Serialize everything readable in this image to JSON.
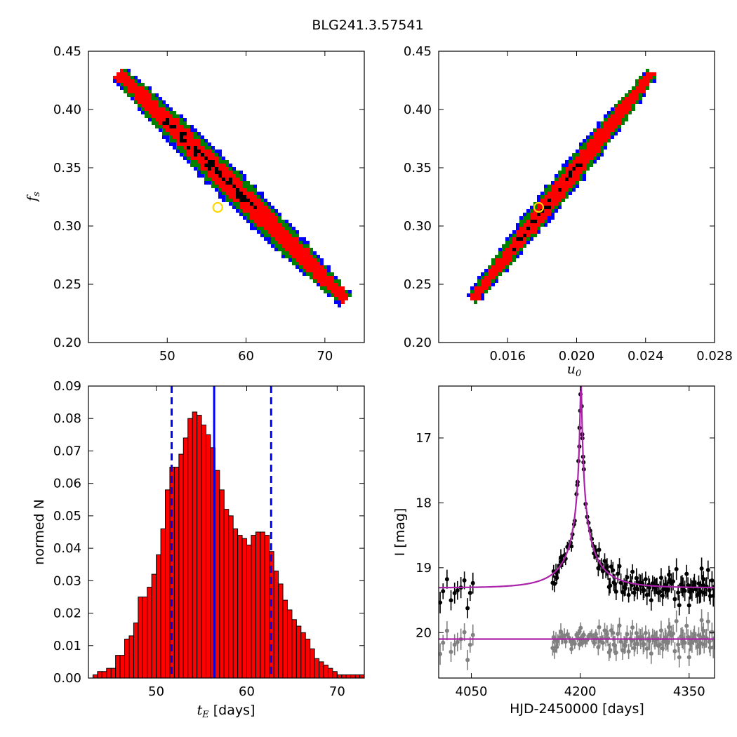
{
  "figure": {
    "title": "BLG241.3.57541"
  },
  "chart_data": [
    {
      "id": "fs_vs_tE",
      "type": "heatmap",
      "description_levels": [
        "black",
        "red",
        "green",
        "blue"
      ],
      "xlabel": "",
      "ylabel": "f_s",
      "xlim": [
        40,
        75
      ],
      "ylim": [
        0.2,
        0.45
      ],
      "xticks": [
        "50",
        "60",
        "70"
      ],
      "yticks": [
        "0.20",
        "0.25",
        "0.30",
        "0.35",
        "0.40",
        "0.45"
      ],
      "ridge": {
        "x": [
          44,
          72.5
        ],
        "y": [
          0.43,
          0.238
        ]
      },
      "best_fit": {
        "x": 56.4,
        "y": 0.316
      },
      "colors": {
        "inner": "#000000",
        "c1": "#ff0000",
        "c2": "#008000",
        "c3": "#0000ff",
        "marker": "#ffd700"
      }
    },
    {
      "id": "fs_vs_u0",
      "type": "heatmap",
      "xlabel": "u_0",
      "ylabel": "",
      "xlim": [
        0.012,
        0.028
      ],
      "ylim": [
        0.2,
        0.45
      ],
      "xticks": [
        "0.016",
        "0.020",
        "0.024",
        "0.028"
      ],
      "yticks": [
        "0.20",
        "0.25",
        "0.30",
        "0.35",
        "0.40",
        "0.45"
      ],
      "ridge": {
        "x": [
          0.014,
          0.0243
        ],
        "y": [
          0.238,
          0.43
        ]
      },
      "best_fit": {
        "x": 0.0178,
        "y": 0.316
      }
    },
    {
      "id": "tE_histogram",
      "type": "bar",
      "xlabel_var": "t_E",
      "xlabel_unit": " [days]",
      "ylabel": "normed N",
      "xlim": [
        42.5,
        73
      ],
      "ylim": [
        0,
        0.09
      ],
      "xticks": [
        "50",
        "60",
        "70"
      ],
      "yticks": [
        "0.00",
        "0.01",
        "0.02",
        "0.03",
        "0.04",
        "0.05",
        "0.06",
        "0.07",
        "0.08",
        "0.09"
      ],
      "bin_start": 43.0,
      "bin_width": 0.5,
      "values": [
        0.001,
        0.002,
        0.002,
        0.003,
        0.003,
        0.007,
        0.007,
        0.012,
        0.013,
        0.017,
        0.025,
        0.025,
        0.028,
        0.032,
        0.038,
        0.046,
        0.058,
        0.065,
        0.065,
        0.069,
        0.074,
        0.08,
        0.082,
        0.081,
        0.078,
        0.075,
        0.071,
        0.064,
        0.058,
        0.052,
        0.05,
        0.046,
        0.044,
        0.043,
        0.041,
        0.044,
        0.045,
        0.045,
        0.044,
        0.039,
        0.033,
        0.029,
        0.024,
        0.021,
        0.018,
        0.016,
        0.014,
        0.012,
        0.009,
        0.006,
        0.005,
        0.004,
        0.003,
        0.002,
        0.001,
        0.001,
        0.001,
        0.001,
        0.001,
        0.001
      ],
      "median": 56.4,
      "lower": 51.7,
      "upper": 62.7,
      "colors": {
        "bar": "#ff0000",
        "edge": "#000000",
        "line": "#0000ff"
      }
    },
    {
      "id": "light_curve",
      "type": "scatter",
      "xlabel": "HJD-2450000 [days]",
      "ylabel": "I [mag]",
      "xlim": [
        4005,
        4385
      ],
      "ylim": [
        20.7,
        16.2
      ],
      "xticks": [
        "4050",
        "4200",
        "4350"
      ],
      "yticks": [
        "17",
        "18",
        "19",
        "20"
      ],
      "model": {
        "t0": 4201,
        "tE": 56.4,
        "u0": 0.0178,
        "fs": 0.316,
        "baseline": 19.31
      },
      "residual_offset": 20.1,
      "season_gap": [
        4055,
        4160
      ],
      "colors": {
        "data": "#000000",
        "residual": "#808080",
        "model": "#aa22aa"
      }
    }
  ]
}
